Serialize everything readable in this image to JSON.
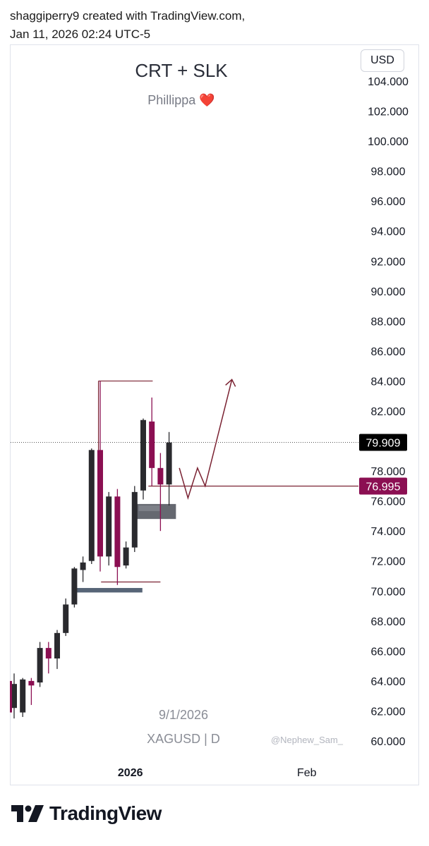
{
  "header": {
    "line1": "shaggiperry9 created with TradingView.com,",
    "line2": "Jan 11, 2026 02:24 UTC-5"
  },
  "currency_label": "USD",
  "footer": {
    "brand": "TradingView"
  },
  "chart_data": {
    "type": "candlestick",
    "title": "CRT + SLK",
    "subtitle": "Phillippa ❤️",
    "watermark_date": "9/1/2026",
    "symbol": "XAGUSD | D",
    "credit": "@Nephew_Sam_",
    "ylim": [
      59,
      106
    ],
    "y_ticks": [
      "104.000",
      "102.000",
      "100.000",
      "98.000",
      "96.000",
      "94.000",
      "92.000",
      "90.000",
      "88.000",
      "86.000",
      "84.000",
      "82.000",
      "80.000",
      "78.000",
      "76.000",
      "74.000",
      "72.000",
      "70.000",
      "68.000",
      "66.000",
      "64.000",
      "62.000",
      "60.000"
    ],
    "x_labels": [
      {
        "label": "2026",
        "bar": 13.5,
        "bold": true
      },
      {
        "label": "Feb",
        "bar": 34,
        "bold": false
      }
    ],
    "price_labels": [
      {
        "value": "79.909",
        "price": 79.909,
        "color": "#000000"
      },
      {
        "value": "76.995",
        "price": 76.995,
        "color": "#8b0f52"
      }
    ],
    "candles": [
      {
        "i": 0,
        "o": 62.2,
        "h": 64.5,
        "l": 61.5,
        "c": 63.8
      },
      {
        "i": 1,
        "o": 61.9,
        "h": 64.2,
        "l": 61.6,
        "c": 64.1
      },
      {
        "i": 2,
        "o": 64.0,
        "h": 64.2,
        "l": 62.4,
        "c": 63.7
      },
      {
        "i": 3,
        "o": 63.9,
        "h": 66.6,
        "l": 63.6,
        "c": 66.2
      },
      {
        "i": 4,
        "o": 66.2,
        "h": 66.6,
        "l": 64.5,
        "c": 65.5
      },
      {
        "i": 5,
        "o": 65.5,
        "h": 67.4,
        "l": 64.8,
        "c": 67.2
      },
      {
        "i": 6,
        "o": 67.2,
        "h": 69.5,
        "l": 67.0,
        "c": 69.1
      },
      {
        "i": 7,
        "o": 69.1,
        "h": 71.6,
        "l": 68.9,
        "c": 71.5
      },
      {
        "i": 8,
        "o": 71.4,
        "h": 72.3,
        "l": 70.6,
        "c": 71.9
      },
      {
        "i": 9,
        "o": 72.0,
        "h": 79.5,
        "l": 71.8,
        "c": 79.4
      },
      {
        "i": 10,
        "o": 79.4,
        "h": 84.0,
        "l": 71.3,
        "c": 72.3
      },
      {
        "i": 11,
        "o": 72.3,
        "h": 76.6,
        "l": 71.7,
        "c": 76.3
      },
      {
        "i": 12,
        "o": 76.3,
        "h": 76.8,
        "l": 70.4,
        "c": 71.6
      },
      {
        "i": 13,
        "o": 71.7,
        "h": 73.3,
        "l": 71.5,
        "c": 72.9
      },
      {
        "i": 14,
        "o": 72.9,
        "h": 77.0,
        "l": 72.6,
        "c": 76.6
      },
      {
        "i": 15,
        "o": 76.7,
        "h": 81.5,
        "l": 76.1,
        "c": 81.4
      },
      {
        "i": 16,
        "o": 81.3,
        "h": 82.9,
        "l": 77.0,
        "c": 78.2
      },
      {
        "i": 17,
        "o": 78.2,
        "h": 79.2,
        "l": 74.0,
        "c": 77.1
      },
      {
        "i": 18,
        "o": 77.1,
        "h": 80.6,
        "l": 75.7,
        "c": 79.9
      }
    ],
    "bar_spacing": 12.2,
    "first_bar_x": 20,
    "annotations": {
      "high_marker": {
        "price": 84.0,
        "from_bar": 9.8,
        "to_bar": 16.1
      },
      "low_marker": {
        "price": 70.6,
        "from_bar": 10.1,
        "to_bar": 17.0
      },
      "level_line": {
        "price": 76.995,
        "from_bar": 15.6
      },
      "zones": [
        {
          "from_bar": 7.0,
          "to_bar": 14.9,
          "top": 70.2,
          "bottom": 69.9
        },
        {
          "from_bar": 14.3,
          "to_bar": 18.8,
          "top": 75.8,
          "bottom": 74.8
        }
      ],
      "projection": [
        {
          "bar": 19.2,
          "price": 78.2
        },
        {
          "bar": 20.2,
          "price": 76.2
        },
        {
          "bar": 21.3,
          "price": 78.2
        },
        {
          "bar": 22.2,
          "price": 77.0
        },
        {
          "bar": 25.3,
          "price": 84.1
        }
      ]
    },
    "colors": {
      "bull": "#2a2a2e",
      "bear": "#8b0f52",
      "line": "#7a2232",
      "zone": "#5d6068",
      "zone_low": "#4e5d70",
      "grid_dotted": "#555555",
      "axis_text": "#131722",
      "muted_text": "#787b86"
    }
  }
}
